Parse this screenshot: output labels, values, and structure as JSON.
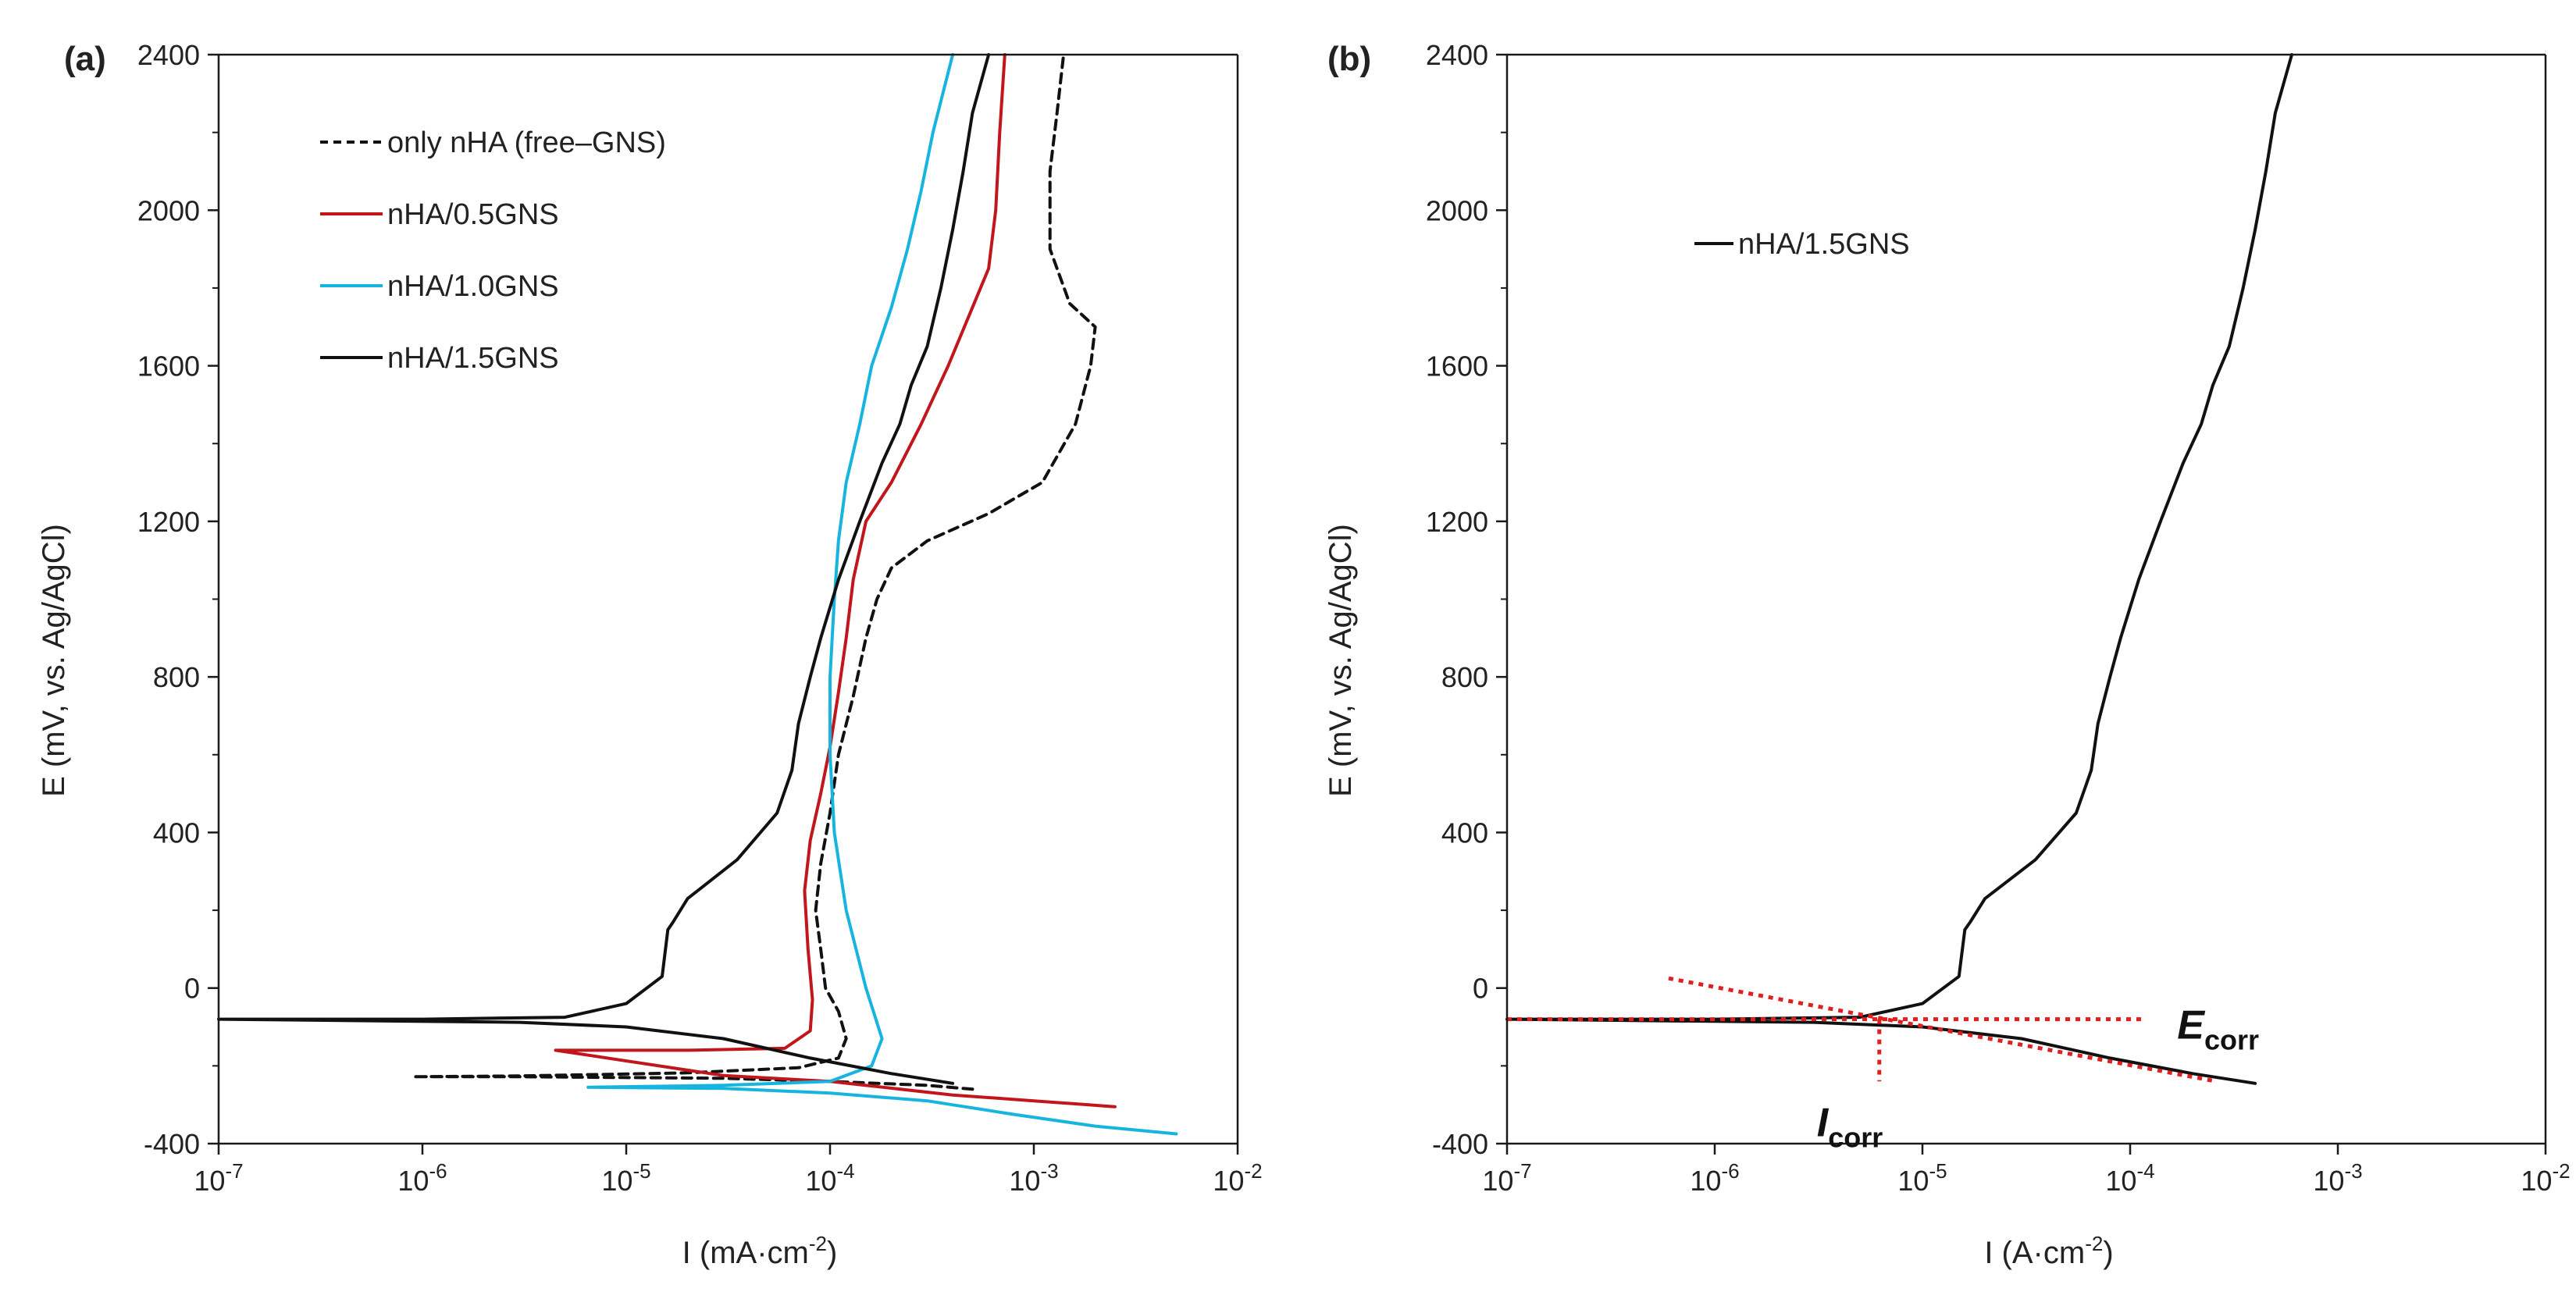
{
  "figure": {
    "colors": {
      "axis": "#1a1a1a",
      "black": "#111111",
      "red": "#c0161c",
      "cyan": "#18b4e0",
      "fit": "#e02020"
    }
  },
  "chart_data": [
    {
      "id": "a",
      "type": "line",
      "panel_label": "(a)",
      "xlabel_base": "I (mA·cm",
      "xlabel_sup": "-2",
      "xlabel_end": ")",
      "ylabel": "E (mV, vs. Ag/AgCl)",
      "xscale": "log",
      "xlim": [
        1e-07,
        0.01
      ],
      "ylim": [
        -400,
        2400
      ],
      "yticks": [
        "2400",
        "2000",
        "1600",
        "1200",
        "800",
        "400",
        "0",
        "-400"
      ],
      "xticks": [
        {
          "base": "10",
          "exp": "-7"
        },
        {
          "base": "10",
          "exp": "-6"
        },
        {
          "base": "10",
          "exp": "-5"
        },
        {
          "base": "10",
          "exp": "-4"
        },
        {
          "base": "10",
          "exp": "-3"
        },
        {
          "base": "10",
          "exp": "-2"
        }
      ],
      "series": [
        {
          "name": "only nHA (free–GNS)",
          "color": "#111111",
          "dash": true,
          "points": [
            [
              0.0005,
              -260
            ],
            [
              0.0003,
              -250
            ],
            [
              0.0001,
              -240
            ],
            [
              3e-05,
              -232
            ],
            [
              3e-06,
              -228
            ],
            [
              9e-07,
              -228
            ],
            [
              3e-06,
              -226
            ],
            [
              2e-05,
              -218
            ],
            [
              7e-05,
              -205
            ],
            [
              0.00011,
              -180
            ],
            [
              0.00012,
              -130
            ],
            [
              0.00011,
              -60
            ],
            [
              9.5e-05,
              0
            ],
            [
              9e-05,
              100
            ],
            [
              8.5e-05,
              200
            ],
            [
              9e-05,
              320
            ],
            [
              0.0001,
              450
            ],
            [
              0.00011,
              600
            ],
            [
              0.00013,
              750
            ],
            [
              0.00015,
              900
            ],
            [
              0.00017,
              1000
            ],
            [
              0.0002,
              1080
            ],
            [
              0.0003,
              1150
            ],
            [
              0.0006,
              1220
            ],
            [
              0.0011,
              1300
            ],
            [
              0.0016,
              1450
            ],
            [
              0.0019,
              1600
            ],
            [
              0.002,
              1700
            ],
            [
              0.0015,
              1760
            ],
            [
              0.0012,
              1900
            ],
            [
              0.0012,
              2100
            ],
            [
              0.0013,
              2250
            ],
            [
              0.0014,
              2400
            ]
          ]
        },
        {
          "name": "nHA/0.5GNS",
          "color": "#c0161c",
          "dash": false,
          "points": [
            [
              0.0025,
              -305
            ],
            [
              0.001,
              -290
            ],
            [
              0.0004,
              -275
            ],
            [
              0.0001,
              -240
            ],
            [
              3e-05,
              -225
            ],
            [
              4.5e-06,
              -160
            ],
            [
              2e-05,
              -160
            ],
            [
              6e-05,
              -155
            ],
            [
              8e-05,
              -110
            ],
            [
              8.2e-05,
              -30
            ],
            [
              7.8e-05,
              100
            ],
            [
              7.5e-05,
              250
            ],
            [
              8e-05,
              380
            ],
            [
              9e-05,
              500
            ],
            [
              0.0001,
              620
            ],
            [
              0.00011,
              760
            ],
            [
              0.00012,
              900
            ],
            [
              0.00013,
              1050
            ],
            [
              0.00015,
              1200
            ],
            [
              0.0002,
              1300
            ],
            [
              0.00028,
              1450
            ],
            [
              0.00038,
              1600
            ],
            [
              0.0005,
              1750
            ],
            [
              0.0006,
              1850
            ],
            [
              0.00065,
              2000
            ],
            [
              0.00068,
              2200
            ],
            [
              0.00072,
              2400
            ]
          ]
        },
        {
          "name": "nHA/1.0GNS",
          "color": "#18b4e0",
          "dash": false,
          "points": [
            [
              0.005,
              -375
            ],
            [
              0.002,
              -355
            ],
            [
              0.0008,
              -325
            ],
            [
              0.0003,
              -290
            ],
            [
              0.0001,
              -270
            ],
            [
              3e-05,
              -258
            ],
            [
              6.5e-06,
              -255
            ],
            [
              3e-05,
              -250
            ],
            [
              0.0001,
              -240
            ],
            [
              0.00016,
              -200
            ],
            [
              0.00018,
              -130
            ],
            [
              0.00015,
              0
            ],
            [
              0.00012,
              200
            ],
            [
              0.000105,
              400
            ],
            [
              0.0001,
              600
            ],
            [
              0.0001,
              800
            ],
            [
              0.000105,
              1000
            ],
            [
              0.00011,
              1150
            ],
            [
              0.00012,
              1300
            ],
            [
              0.00014,
              1450
            ],
            [
              0.00016,
              1600
            ],
            [
              0.0002,
              1750
            ],
            [
              0.00024,
              1900
            ],
            [
              0.00028,
              2050
            ],
            [
              0.00032,
              2200
            ],
            [
              0.0004,
              2400
            ]
          ]
        },
        {
          "name": "nHA/1.5GNS",
          "color": "#111111",
          "dash": false,
          "points": [
            [
              0.0004,
              -245
            ],
            [
              0.0002,
              -220
            ],
            [
              8e-05,
              -180
            ],
            [
              3e-05,
              -130
            ],
            [
              1e-05,
              -100
            ],
            [
              3e-06,
              -88
            ],
            [
              1e-07,
              -80
            ],
            [
              1e-06,
              -80
            ],
            [
              5e-06,
              -75
            ],
            [
              1e-05,
              -40
            ],
            [
              1.5e-05,
              30
            ],
            [
              1.6e-05,
              150
            ],
            [
              1.7e-05,
              170
            ],
            [
              2e-05,
              230
            ],
            [
              3.5e-05,
              330
            ],
            [
              5.5e-05,
              450
            ],
            [
              6.5e-05,
              560
            ],
            [
              7e-05,
              680
            ],
            [
              8e-05,
              800
            ],
            [
              9e-05,
              900
            ],
            [
              0.00011,
              1050
            ],
            [
              0.00014,
              1200
            ],
            [
              0.00018,
              1350
            ],
            [
              0.00022,
              1450
            ],
            [
              0.00025,
              1550
            ],
            [
              0.0003,
              1650
            ],
            [
              0.00035,
              1800
            ],
            [
              0.0004,
              1950
            ],
            [
              0.00045,
              2100
            ],
            [
              0.0005,
              2250
            ],
            [
              0.0006,
              2400
            ]
          ]
        }
      ]
    },
    {
      "id": "b",
      "type": "line",
      "panel_label": "(b)",
      "xlabel_base": "I (A·cm",
      "xlabel_sup": "-2",
      "xlabel_end": ")",
      "ylabel": "E (mV, vs. Ag/AgCl)",
      "xscale": "log",
      "xlim": [
        1e-07,
        0.01
      ],
      "ylim": [
        -400,
        2400
      ],
      "yticks": [
        "2400",
        "2000",
        "1600",
        "1200",
        "800",
        "400",
        "0",
        "-400"
      ],
      "xticks": [
        {
          "base": "10",
          "exp": "-7"
        },
        {
          "base": "10",
          "exp": "-6"
        },
        {
          "base": "10",
          "exp": "-5"
        },
        {
          "base": "10",
          "exp": "-4"
        },
        {
          "base": "10",
          "exp": "-3"
        },
        {
          "base": "10",
          "exp": "-2"
        }
      ],
      "series": [
        {
          "name": "nHA/1.5GNS",
          "color": "#111111",
          "dash": false,
          "points": [
            [
              0.0004,
              -245
            ],
            [
              0.0002,
              -220
            ],
            [
              8e-05,
              -180
            ],
            [
              3e-05,
              -130
            ],
            [
              1e-05,
              -100
            ],
            [
              3e-06,
              -88
            ],
            [
              1e-07,
              -80
            ],
            [
              1e-06,
              -80
            ],
            [
              5e-06,
              -75
            ],
            [
              1e-05,
              -40
            ],
            [
              1.5e-05,
              30
            ],
            [
              1.6e-05,
              150
            ],
            [
              1.7e-05,
              170
            ],
            [
              2e-05,
              230
            ],
            [
              3.5e-05,
              330
            ],
            [
              5.5e-05,
              450
            ],
            [
              6.5e-05,
              560
            ],
            [
              7e-05,
              680
            ],
            [
              8e-05,
              800
            ],
            [
              9e-05,
              900
            ],
            [
              0.00011,
              1050
            ],
            [
              0.00014,
              1200
            ],
            [
              0.00018,
              1350
            ],
            [
              0.00022,
              1450
            ],
            [
              0.00025,
              1550
            ],
            [
              0.0003,
              1650
            ],
            [
              0.00035,
              1800
            ],
            [
              0.0004,
              1950
            ],
            [
              0.00045,
              2100
            ],
            [
              0.0005,
              2250
            ],
            [
              0.0006,
              2400
            ]
          ]
        }
      ],
      "tafel_lines": [
        {
          "points": [
            [
              6e-07,
              25
            ],
            [
              0.00026,
              -240
            ]
          ]
        },
        {
          "points": [
            [
              1e-07,
              -80
            ],
            [
              0.00012,
              -80
            ]
          ]
        },
        {
          "points": [
            [
              6.2e-06,
              -80
            ],
            [
              6.2e-06,
              -240
            ]
          ]
        }
      ],
      "annotations": {
        "ecorr": {
          "main": "E",
          "sub": "corr",
          "at": [
            0.00013,
            -80
          ]
        },
        "icorr": {
          "main": "I",
          "sub": "corr",
          "at": [
            6.2e-06,
            -240
          ]
        }
      }
    }
  ]
}
